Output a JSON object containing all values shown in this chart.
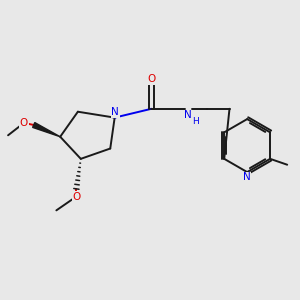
{
  "bg_color": "#e8e8e8",
  "bond_color": "#1a1a1a",
  "N_color": "#0000ee",
  "O_color": "#dd0000",
  "line_width": 1.4,
  "figsize": [
    3.0,
    3.0
  ],
  "dpi": 100,
  "xlim": [
    0,
    10
  ],
  "ylim": [
    0,
    10
  ]
}
